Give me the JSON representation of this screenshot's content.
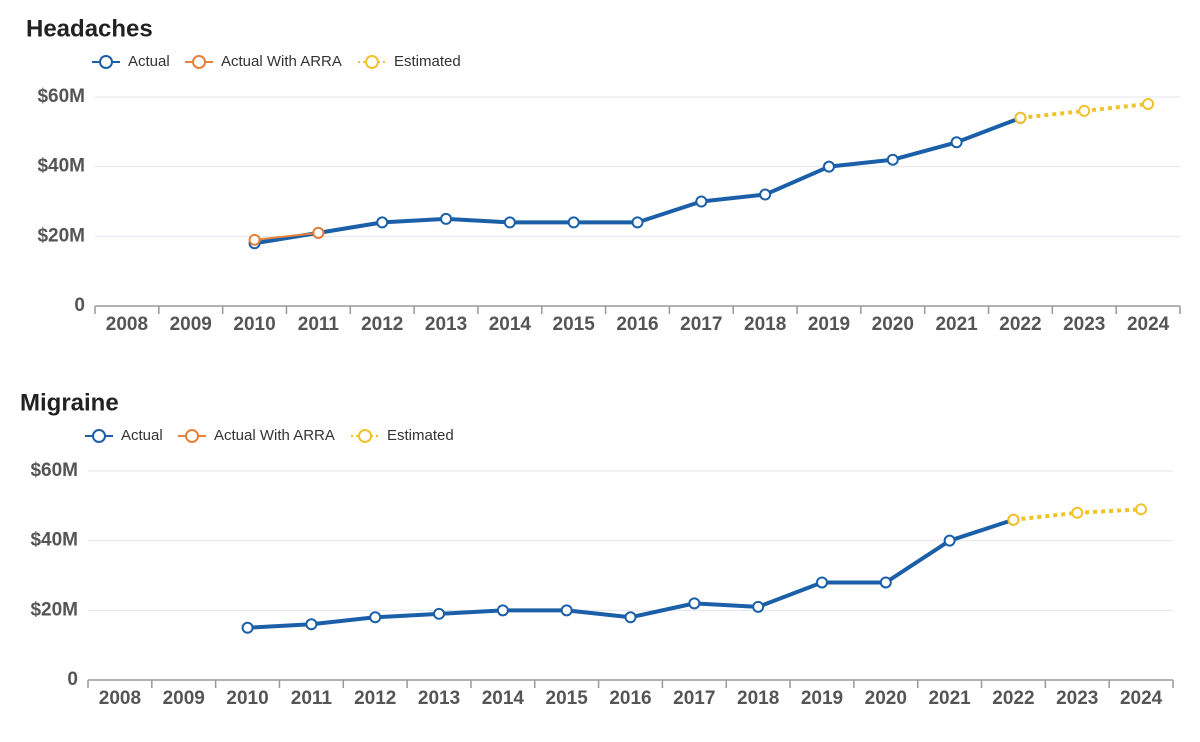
{
  "chart_data": [
    {
      "type": "line",
      "title": "Headaches",
      "categories": [
        "2008",
        "2009",
        "2010",
        "2011",
        "2012",
        "2013",
        "2014",
        "2015",
        "2016",
        "2017",
        "2018",
        "2019",
        "2020",
        "2021",
        "2022",
        "2023",
        "2024"
      ],
      "series": [
        {
          "name": "Actual",
          "color": "#1a5fa8",
          "values": [
            null,
            null,
            18,
            21,
            24,
            25,
            24,
            24,
            24,
            30,
            32,
            40,
            42,
            47,
            54,
            null,
            null
          ]
        },
        {
          "name": "Actual With ARRA",
          "color": "#e8803a",
          "values": [
            null,
            null,
            19,
            21,
            null,
            null,
            null,
            null,
            null,
            null,
            null,
            null,
            null,
            null,
            null,
            null,
            null
          ]
        },
        {
          "name": "Estimated",
          "color": "#f2c12e",
          "values": [
            null,
            null,
            null,
            null,
            null,
            null,
            null,
            null,
            null,
            null,
            null,
            null,
            null,
            null,
            54,
            56,
            58
          ]
        }
      ],
      "ylim": [
        0,
        60
      ],
      "yticks": [
        0,
        {
          "value": 20,
          "label": "$20M"
        },
        {
          "value": 40,
          "label": "$40M"
        },
        {
          "value": 60,
          "label": "$60M"
        }
      ],
      "grid": true
    },
    {
      "type": "line",
      "title": "Migraine",
      "categories": [
        "2008",
        "2009",
        "2010",
        "2011",
        "2012",
        "2013",
        "2014",
        "2015",
        "2016",
        "2017",
        "2018",
        "2019",
        "2020",
        "2021",
        "2022",
        "2023",
        "2024"
      ],
      "series": [
        {
          "name": "Actual",
          "color": "#1a5fa8",
          "values": [
            null,
            null,
            15,
            16,
            18,
            19,
            20,
            20,
            18,
            22,
            21,
            28,
            28,
            40,
            46,
            null,
            null
          ]
        },
        {
          "name": "Actual With ARRA",
          "color": "#e8803a",
          "values": [
            null,
            null,
            null,
            null,
            null,
            null,
            null,
            null,
            null,
            null,
            null,
            null,
            null,
            null,
            null,
            null,
            null
          ]
        },
        {
          "name": "Estimated",
          "color": "#f2c12e",
          "values": [
            null,
            null,
            null,
            null,
            null,
            null,
            null,
            null,
            null,
            null,
            null,
            null,
            null,
            null,
            46,
            48,
            49
          ]
        }
      ],
      "ylim": [
        0,
        60
      ],
      "yticks": [
        0,
        {
          "value": 20,
          "label": "$20M"
        },
        {
          "value": 40,
          "label": "$40M"
        },
        {
          "value": 60,
          "label": "$60M"
        }
      ],
      "grid": true
    }
  ]
}
